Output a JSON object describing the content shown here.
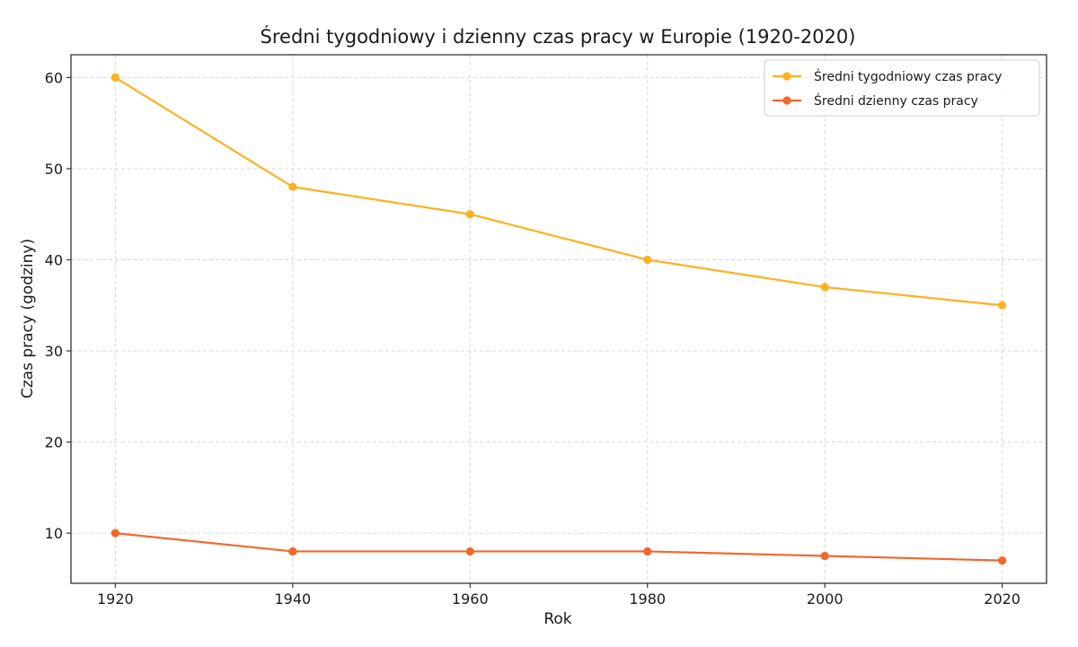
{
  "chart_data": {
    "type": "line",
    "title": "Średni tygodniowy i dzienny czas pracy w Europie (1920-2020)",
    "xlabel": "Rok",
    "ylabel": "Czas pracy (godziny)",
    "x": [
      1920,
      1940,
      1960,
      1980,
      2000,
      2020
    ],
    "x_ticks": [
      "1920",
      "1940",
      "1960",
      "1980",
      "2000",
      "2020"
    ],
    "y_ticks": [
      "10",
      "20",
      "30",
      "40",
      "50",
      "60"
    ],
    "xlim": [
      1915,
      2025
    ],
    "ylim": [
      4.5,
      62.5
    ],
    "grid": true,
    "legend_position": "top-right",
    "series": [
      {
        "name": "Średni tygodniowy czas pracy",
        "color": "#FFB020",
        "values": [
          60,
          48,
          45,
          40,
          37,
          35
        ]
      },
      {
        "name": "Średni dzienny czas pracy",
        "color": "#F4672A",
        "values": [
          10,
          8,
          8,
          8,
          7.5,
          7
        ]
      }
    ]
  }
}
